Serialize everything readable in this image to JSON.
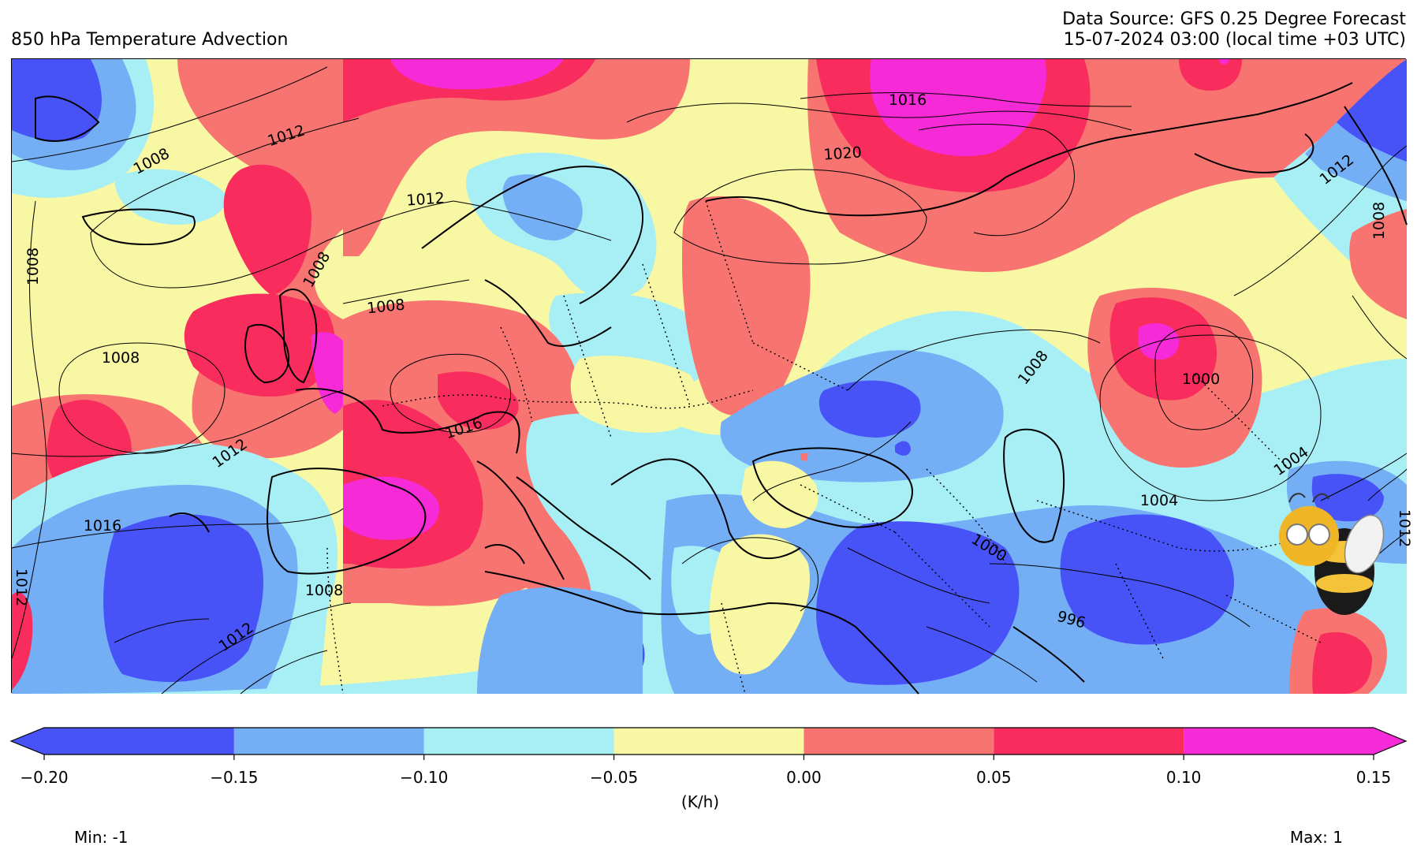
{
  "header": {
    "title": "850 hPa Temperature Advection",
    "source_line": "Data Source: GFS 0.25 Degree Forecast",
    "time_line": "15-07-2024 03:00 (local time +03 UTC)"
  },
  "colorbar": {
    "ticks": [
      "−0.20",
      "−0.15",
      "−0.10",
      "−0.05",
      "0.00",
      "0.05",
      "0.10",
      "0.15"
    ],
    "colors": [
      "#4853f7",
      "#74aef5",
      "#a8eff5",
      "#f8f7a3",
      "#f87471",
      "#f82d5e",
      "#f72ad7"
    ],
    "units": "(K/h)",
    "extend": "both"
  },
  "stats": {
    "min": "Min: -1",
    "max": "Max: 1"
  },
  "isobars": {
    "labels": [
      "1008",
      "1012",
      "1012",
      "1008",
      "1008",
      "1008",
      "1016",
      "1012",
      "1016",
      "1012",
      "1008",
      "1016",
      "1020",
      "1012",
      "1008",
      "1008",
      "1000",
      "1004",
      "1000",
      "1004",
      "996",
      "1012",
      "1012",
      "1008"
    ]
  },
  "logo": "bee-mascot-logo"
}
